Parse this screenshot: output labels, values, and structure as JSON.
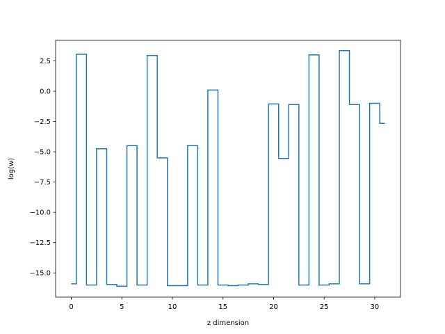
{
  "chart_data": {
    "type": "line",
    "step": "mid",
    "xlabel": "z dimension",
    "ylabel": "log(w)",
    "xlim": [
      -1.55,
      32.55
    ],
    "ylim": [
      -17.0,
      4.2
    ],
    "xticks": [
      0,
      5,
      10,
      15,
      20,
      25,
      30
    ],
    "yticks": [
      2.5,
      0.0,
      -2.5,
      -5.0,
      -7.5,
      -10.0,
      -12.5,
      -15.0
    ],
    "ytick_labels": [
      "2.5",
      "0.0",
      "−2.5",
      "−5.0",
      "−7.5",
      "−10.0",
      "−12.5",
      "−15.0"
    ],
    "grid": false,
    "series": [
      {
        "color": "#1f77b4",
        "x": [
          0,
          1,
          2,
          3,
          4,
          5,
          6,
          7,
          8,
          9,
          10,
          11,
          12,
          13,
          14,
          15,
          16,
          17,
          18,
          19,
          20,
          21,
          22,
          23,
          24,
          25,
          26,
          27,
          28,
          29,
          30,
          31
        ],
        "y": [
          -15.9,
          3.05,
          -16.0,
          -4.75,
          -15.95,
          -16.1,
          -4.5,
          -16.0,
          2.95,
          -5.5,
          -16.05,
          -16.05,
          -4.5,
          -16.0,
          0.1,
          -16.0,
          -16.05,
          -16.0,
          -15.9,
          -15.95,
          -1.05,
          -5.55,
          -1.1,
          -16.0,
          3.0,
          -16.0,
          -15.9,
          3.35,
          -1.1,
          -15.9,
          -1.0,
          -2.65
        ]
      }
    ]
  }
}
